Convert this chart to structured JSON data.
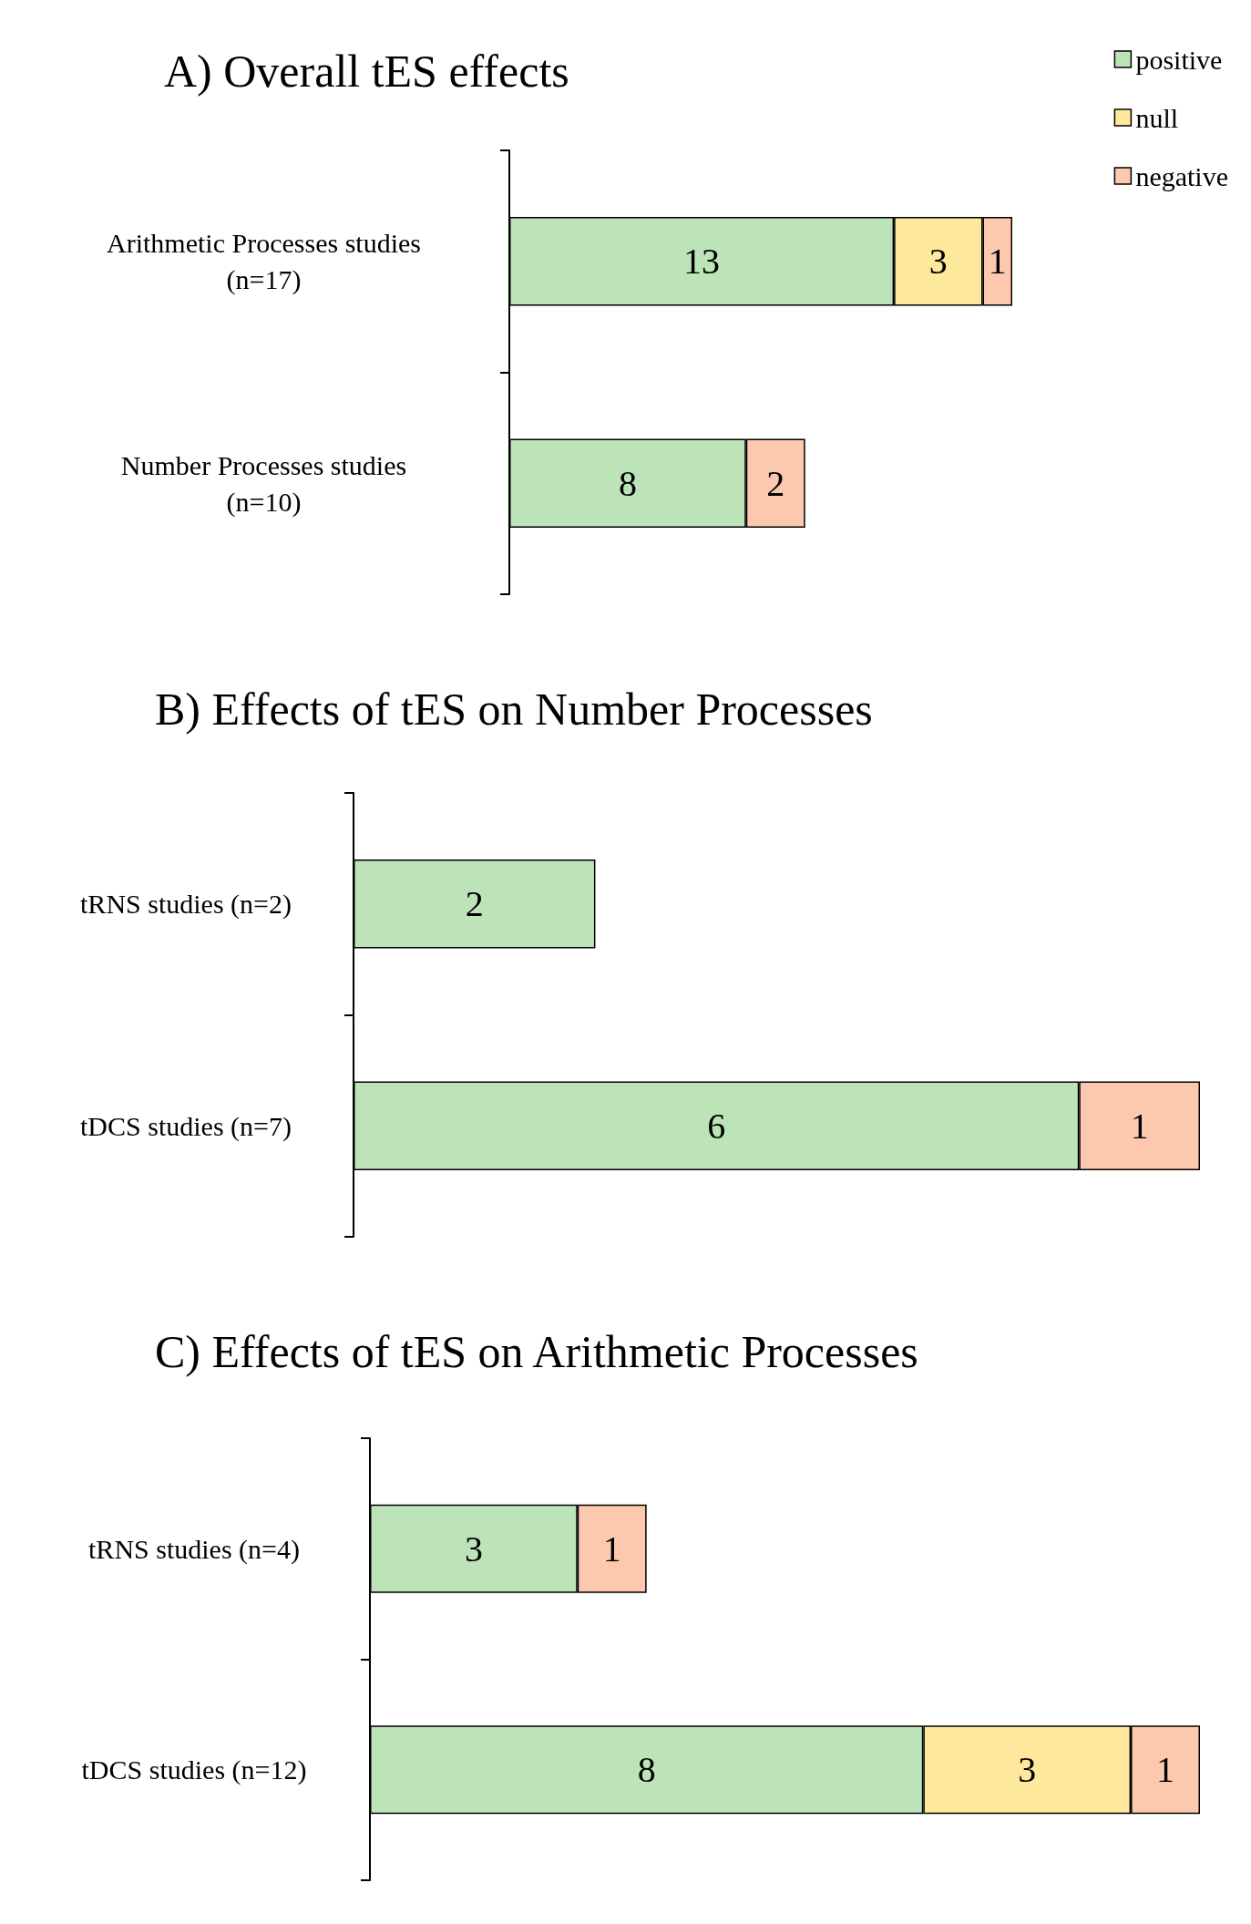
{
  "chart_data": [
    {
      "type": "bar",
      "orientation": "horizontal",
      "stacked": true,
      "title": "A) Overall tES effects",
      "categories": [
        "Arithmetic Processes studies\n(n=17)",
        "Number Processes studies\n(n=10)"
      ],
      "series": [
        {
          "name": "positive",
          "color": "#bde3b8",
          "values": [
            13,
            8
          ]
        },
        {
          "name": "null",
          "color": "#fde89c",
          "values": [
            3,
            null
          ]
        },
        {
          "name": "negative",
          "color": "#fcc9ae",
          "values": [
            1,
            2
          ]
        }
      ],
      "data_labels": true,
      "legend": "top right",
      "grid": false
    },
    {
      "type": "bar",
      "orientation": "horizontal",
      "stacked": true,
      "title": "B) Effects of tES on Number Processes",
      "categories": [
        "tRNS studies (n=2)",
        "tDCS studies (n=7)"
      ],
      "series": [
        {
          "color": "#bde3b8",
          "values": [
            2,
            6
          ]
        },
        {
          "color": "#fcc9ae",
          "values": [
            null,
            1
          ]
        }
      ],
      "data_labels": true,
      "legend": false,
      "grid": false
    },
    {
      "type": "bar",
      "orientation": "horizontal",
      "stacked": true,
      "title": "C) Effects of tES on Arithmetic Processes",
      "categories": [
        "tRNS studies (n=4)",
        "tDCS studies (n=12)"
      ],
      "series": [
        {
          "color": "#bde3b8",
          "values": [
            3,
            8
          ]
        },
        {
          "color": "#fde89c",
          "values": [
            null,
            3
          ]
        },
        {
          "color": "#fcc9ae",
          "values": [
            1,
            1
          ]
        }
      ],
      "data_labels": true,
      "legend": false,
      "grid": false
    }
  ]
}
